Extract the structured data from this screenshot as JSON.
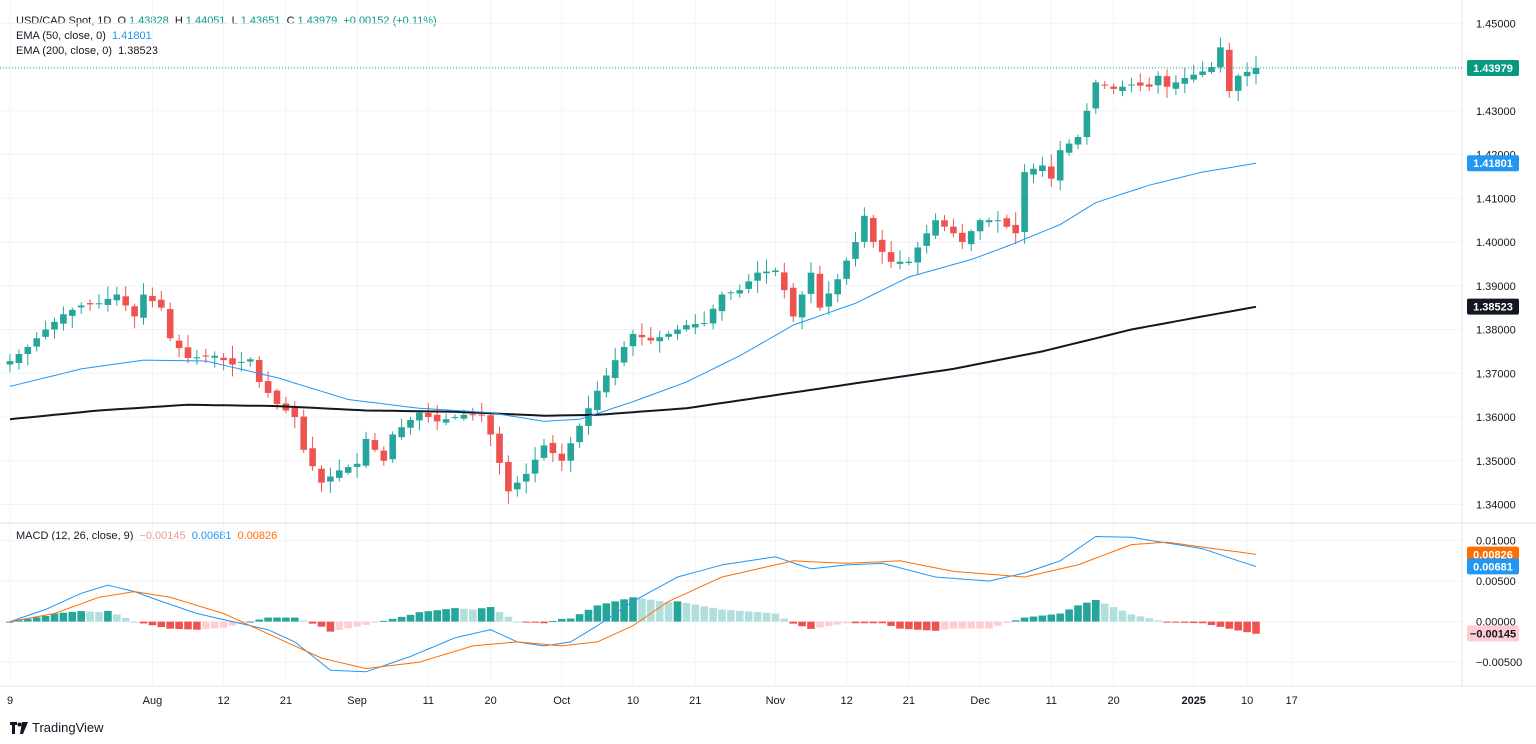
{
  "header": {
    "symbol_line": "USD/CAD Spot, 1D",
    "o_label": "O",
    "o_value": "1.43828",
    "h_label": "H",
    "h_value": "1.44051",
    "l_label": "L",
    "l_value": "1.43651",
    "c_label": "C",
    "c_value": "1.43979",
    "change": "+0.00152 (+0.11%)",
    "ema50_label": "EMA (50, close, 0)",
    "ema50_value": "1.41801",
    "ema200_label": "EMA (200, close, 0)",
    "ema200_value": "1.38523",
    "macd_label": "MACD (12, 26, close, 9)",
    "macd_hist_value": "−0.00145",
    "macd_line_value": "0.00681",
    "macd_signal_value": "0.00826"
  },
  "brand": {
    "name": "TradingView"
  },
  "colors": {
    "up": "#26a69a",
    "down": "#ef5350",
    "up_light": "#b2dfdb",
    "down_light": "#ffcdd2",
    "ema50": "#2196f3",
    "ema200": "#131722",
    "macd": "#2196f3",
    "signal": "#ff6d00"
  },
  "chart_data": {
    "type": "candlestick",
    "title": "USD/CAD Spot, 1D",
    "x_tick_labels": [
      {
        "i": 0,
        "label": "9"
      },
      {
        "i": 16,
        "label": "Aug"
      },
      {
        "i": 24,
        "label": "12"
      },
      {
        "i": 31,
        "label": "21"
      },
      {
        "i": 39,
        "label": "Sep"
      },
      {
        "i": 47,
        "label": "11"
      },
      {
        "i": 54,
        "label": "20"
      },
      {
        "i": 62,
        "label": "Oct"
      },
      {
        "i": 70,
        "label": "10"
      },
      {
        "i": 77,
        "label": "21"
      },
      {
        "i": 86,
        "label": "Nov"
      },
      {
        "i": 94,
        "label": "12"
      },
      {
        "i": 101,
        "label": "21"
      },
      {
        "i": 109,
        "label": "Dec"
      },
      {
        "i": 117,
        "label": "11"
      },
      {
        "i": 124,
        "label": "20"
      },
      {
        "i": 133,
        "label": "2025"
      },
      {
        "i": 139,
        "label": "10"
      },
      {
        "i": 144,
        "label": "17"
      }
    ],
    "price_axis": {
      "min": 1.336,
      "max": 1.4535,
      "ticks": [
        "1.45000",
        "1.44000",
        "1.43000",
        "1.42000",
        "1.41000",
        "1.40000",
        "1.39000",
        "1.38000",
        "1.37000",
        "1.36000",
        "1.35000",
        "1.34000"
      ]
    },
    "current_price": "1.43979",
    "close_anchors": [
      [
        0,
        1.3728
      ],
      [
        2,
        1.376
      ],
      [
        4,
        1.38
      ],
      [
        6,
        1.3835
      ],
      [
        8,
        1.3855
      ],
      [
        10,
        1.386
      ],
      [
        12,
        1.388
      ],
      [
        14,
        1.383
      ],
      [
        15,
        1.388
      ],
      [
        17,
        1.385
      ],
      [
        18,
        1.378
      ],
      [
        20,
        1.3735
      ],
      [
        23,
        1.374
      ],
      [
        25,
        1.372
      ],
      [
        27,
        1.3732
      ],
      [
        28,
        1.368
      ],
      [
        30,
        1.363
      ],
      [
        32,
        1.36
      ],
      [
        33,
        1.3525
      ],
      [
        35,
        1.345
      ],
      [
        37,
        1.3478
      ],
      [
        39,
        1.3493
      ],
      [
        40,
        1.355
      ],
      [
        42,
        1.35
      ],
      [
        43,
        1.356
      ],
      [
        46,
        1.361
      ],
      [
        48,
        1.359
      ],
      [
        51,
        1.3605
      ],
      [
        53,
        1.3605
      ],
      [
        54,
        1.356
      ],
      [
        56,
        1.343
      ],
      [
        58,
        1.347
      ],
      [
        60,
        1.3535
      ],
      [
        62,
        1.35
      ],
      [
        64,
        1.358
      ],
      [
        66,
        1.366
      ],
      [
        68,
        1.373
      ],
      [
        70,
        1.379
      ],
      [
        72,
        1.3775
      ],
      [
        74,
        1.379
      ],
      [
        76,
        1.381
      ],
      [
        78,
        1.3815
      ],
      [
        80,
        1.388
      ],
      [
        82,
        1.389
      ],
      [
        84,
        1.393
      ],
      [
        86,
        1.3935
      ],
      [
        87,
        1.389
      ],
      [
        88,
        1.383
      ],
      [
        90,
        1.393
      ],
      [
        91,
        1.385
      ],
      [
        93,
        1.3915
      ],
      [
        95,
        1.4
      ],
      [
        96,
        1.406
      ],
      [
        97,
        1.4
      ],
      [
        99,
        1.3955
      ],
      [
        101,
        1.3955
      ],
      [
        103,
        1.402
      ],
      [
        104,
        1.405
      ],
      [
        106,
        1.402
      ],
      [
        107,
        1.4
      ],
      [
        109,
        1.405
      ],
      [
        111,
        1.405
      ],
      [
        113,
        1.402
      ],
      [
        114,
        1.416
      ],
      [
        116,
        1.4175
      ],
      [
        117,
        1.4145
      ],
      [
        118,
        1.421
      ],
      [
        120,
        1.424
      ],
      [
        121,
        1.43
      ],
      [
        122,
        1.4365
      ],
      [
        124,
        1.435
      ],
      [
        126,
        1.436
      ],
      [
        128,
        1.4355
      ],
      [
        129,
        1.438
      ],
      [
        130,
        1.4355
      ],
      [
        132,
        1.4375
      ],
      [
        134,
        1.439
      ],
      [
        135,
        1.44
      ],
      [
        136,
        1.4445
      ],
      [
        137,
        1.4345
      ],
      [
        138,
        1.438
      ],
      [
        140,
        1.4398
      ]
    ],
    "ema50_anchors": [
      [
        0,
        1.367
      ],
      [
        8,
        1.371
      ],
      [
        15,
        1.373
      ],
      [
        22,
        1.3728
      ],
      [
        30,
        1.369
      ],
      [
        38,
        1.364
      ],
      [
        46,
        1.362
      ],
      [
        54,
        1.361
      ],
      [
        60,
        1.359
      ],
      [
        64,
        1.3595
      ],
      [
        70,
        1.3635
      ],
      [
        76,
        1.368
      ],
      [
        82,
        1.374
      ],
      [
        88,
        1.381
      ],
      [
        95,
        1.386
      ],
      [
        101,
        1.392
      ],
      [
        108,
        1.396
      ],
      [
        112,
        1.399
      ],
      [
        118,
        1.404
      ],
      [
        122,
        1.409
      ],
      [
        128,
        1.413
      ],
      [
        134,
        1.416
      ],
      [
        140,
        1.418
      ]
    ],
    "ema200_anchors": [
      [
        0,
        1.3595
      ],
      [
        10,
        1.3615
      ],
      [
        20,
        1.3628
      ],
      [
        30,
        1.3625
      ],
      [
        40,
        1.3615
      ],
      [
        50,
        1.3612
      ],
      [
        60,
        1.3603
      ],
      [
        66,
        1.3605
      ],
      [
        76,
        1.362
      ],
      [
        86,
        1.365
      ],
      [
        96,
        1.368
      ],
      [
        106,
        1.371
      ],
      [
        116,
        1.375
      ],
      [
        126,
        1.38
      ],
      [
        134,
        1.383
      ],
      [
        140,
        1.3852
      ]
    ],
    "macd_axis": {
      "min": -0.0077,
      "max": 0.0118,
      "ticks": [
        "0.01000",
        "0.00500",
        "0.00000",
        "−0.00500"
      ]
    },
    "macd_line_anchors": [
      [
        0,
        0.0
      ],
      [
        4,
        0.0015
      ],
      [
        8,
        0.0035
      ],
      [
        11,
        0.0045
      ],
      [
        14,
        0.0037
      ],
      [
        17,
        0.0025
      ],
      [
        21,
        0.001
      ],
      [
        25,
        0.0
      ],
      [
        29,
        -0.001
      ],
      [
        32,
        -0.0025
      ],
      [
        36,
        -0.006
      ],
      [
        40,
        -0.0062
      ],
      [
        45,
        -0.0043
      ],
      [
        50,
        -0.002
      ],
      [
        54,
        -0.001
      ],
      [
        57,
        -0.0025
      ],
      [
        60,
        -0.003
      ],
      [
        63,
        -0.0025
      ],
      [
        66,
        -0.0005
      ],
      [
        70,
        0.0025
      ],
      [
        75,
        0.0055
      ],
      [
        80,
        0.007
      ],
      [
        86,
        0.008
      ],
      [
        90,
        0.0065
      ],
      [
        94,
        0.007
      ],
      [
        98,
        0.0072
      ],
      [
        104,
        0.0055
      ],
      [
        110,
        0.005
      ],
      [
        114,
        0.006
      ],
      [
        118,
        0.0075
      ],
      [
        122,
        0.0105
      ],
      [
        126,
        0.0104
      ],
      [
        130,
        0.0097
      ],
      [
        134,
        0.009
      ],
      [
        138,
        0.0075
      ],
      [
        140,
        0.0068
      ]
    ],
    "signal_line_anchors": [
      [
        0,
        0.0
      ],
      [
        5,
        0.001
      ],
      [
        10,
        0.003
      ],
      [
        14,
        0.0037
      ],
      [
        18,
        0.003
      ],
      [
        24,
        0.001
      ],
      [
        30,
        -0.002
      ],
      [
        35,
        -0.0045
      ],
      [
        40,
        -0.0058
      ],
      [
        46,
        -0.005
      ],
      [
        52,
        -0.003
      ],
      [
        57,
        -0.0025
      ],
      [
        62,
        -0.003
      ],
      [
        66,
        -0.0025
      ],
      [
        70,
        -0.0005
      ],
      [
        74,
        0.0025
      ],
      [
        80,
        0.0055
      ],
      [
        88,
        0.0075
      ],
      [
        94,
        0.0072
      ],
      [
        100,
        0.0075
      ],
      [
        106,
        0.0062
      ],
      [
        114,
        0.0055
      ],
      [
        120,
        0.007
      ],
      [
        126,
        0.0095
      ],
      [
        130,
        0.0098
      ],
      [
        134,
        0.0092
      ],
      [
        140,
        0.0083
      ]
    ]
  }
}
